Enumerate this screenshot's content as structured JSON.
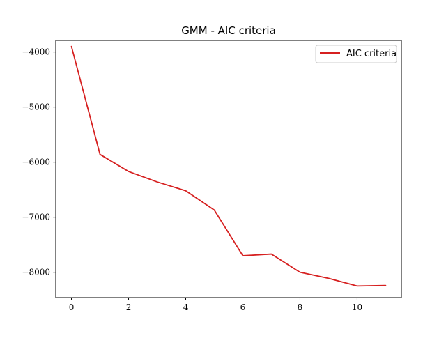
{
  "chart_data": {
    "type": "line",
    "title": "GMM - AIC criteria",
    "xlabel": "",
    "ylabel": "",
    "xlim": [
      -0.55,
      11.55
    ],
    "ylim": [
      -8460,
      -3790
    ],
    "x_ticks": [
      0,
      2,
      4,
      6,
      8,
      10
    ],
    "y_ticks": [
      -4000,
      -5000,
      -6000,
      -7000,
      -8000
    ],
    "x_tick_labels": [
      "0",
      "2",
      "4",
      "6",
      "8",
      "10"
    ],
    "y_tick_labels": [
      "−4000",
      "−5000",
      "−6000",
      "−7000",
      "−8000"
    ],
    "grid": false,
    "legend_position": "top-right",
    "series": [
      {
        "name": "AIC criteria",
        "color": "#d62020",
        "x": [
          0,
          1,
          2,
          3,
          4,
          5,
          6,
          7,
          8,
          9,
          10,
          11
        ],
        "y": [
          -3900,
          -5860,
          -6170,
          -6360,
          -6520,
          -6870,
          -7700,
          -7670,
          -8000,
          -8110,
          -8250,
          -8240
        ]
      }
    ]
  }
}
